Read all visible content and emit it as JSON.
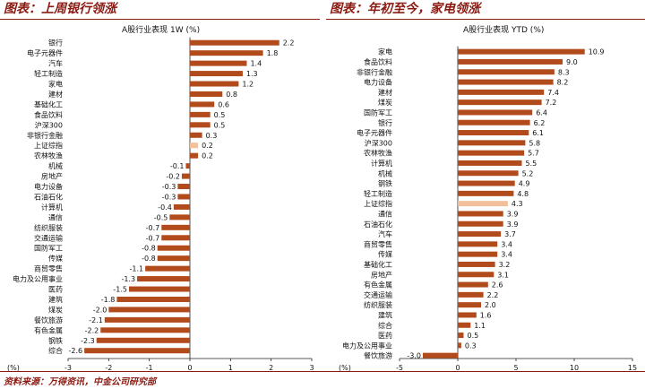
{
  "header_left": "图表：上周银行领涨",
  "header_right": "图表：年初至今，家电领涨",
  "footer": "资料来源：万得资讯，中金公司研究部",
  "colors": {
    "bar": "#b24b1b",
    "highlight": "#f2c09a",
    "brand": "#8b1a12"
  },
  "chart_data": [
    {
      "type": "bar",
      "orientation": "horizontal",
      "title": "A股行业表现 1W (%)",
      "xlabel": "(%)",
      "xlim": [
        -3,
        3
      ],
      "xticks": [
        -3,
        -2,
        -1,
        0,
        1,
        2,
        3
      ],
      "highlight": "上证综指",
      "categories": [
        "银行",
        "电子元器件",
        "汽车",
        "轻工制造",
        "家电",
        "建材",
        "基础化工",
        "食品饮料",
        "沪深300",
        "非银行金融",
        "上证综指",
        "农林牧渔",
        "机械",
        "房地产",
        "电力设备",
        "石油石化",
        "计算机",
        "通信",
        "纺织服装",
        "交通运输",
        "国防军工",
        "传媒",
        "商贸零售",
        "电力及公用事业",
        "医药",
        "建筑",
        "煤炭",
        "餐饮旅游",
        "有色金属",
        "钢铁",
        "综合"
      ],
      "values": [
        2.2,
        1.8,
        1.4,
        1.3,
        1.2,
        0.8,
        0.6,
        0.5,
        0.5,
        0.3,
        0.2,
        0.2,
        -0.1,
        -0.2,
        -0.3,
        -0.3,
        -0.4,
        -0.5,
        -0.7,
        -0.7,
        -0.8,
        -0.8,
        -1.1,
        -1.3,
        -1.5,
        -1.8,
        -2.0,
        -2.1,
        -2.2,
        -2.3,
        -2.6
      ]
    },
    {
      "type": "bar",
      "orientation": "horizontal",
      "title": "A股行业表现 YTD (%)",
      "xlabel": "(%)",
      "xlim": [
        -5,
        15
      ],
      "xticks": [
        -5,
        0,
        5,
        10,
        15
      ],
      "highlight": "上证综指",
      "categories": [
        "家电",
        "食品饮料",
        "非银行金融",
        "电力设备",
        "建材",
        "煤炭",
        "国防军工",
        "银行",
        "电子元器件",
        "沪深300",
        "农林牧渔",
        "计算机",
        "机械",
        "钢铁",
        "轻工制造",
        "上证综指",
        "通信",
        "石油石化",
        "汽车",
        "商贸零售",
        "传媒",
        "基础化工",
        "房地产",
        "有色金属",
        "交通运输",
        "纺织服装",
        "建筑",
        "综合",
        "医药",
        "电力及公用事业",
        "餐饮旅游"
      ],
      "values": [
        10.9,
        9.0,
        8.3,
        8.2,
        7.4,
        7.2,
        6.4,
        6.2,
        6.1,
        5.8,
        5.7,
        5.5,
        5.2,
        4.9,
        4.8,
        4.3,
        3.9,
        3.9,
        3.7,
        3.4,
        3.4,
        3.2,
        3.1,
        2.6,
        2.2,
        2.0,
        1.6,
        1.1,
        0.5,
        0.3,
        -3.0
      ]
    }
  ]
}
